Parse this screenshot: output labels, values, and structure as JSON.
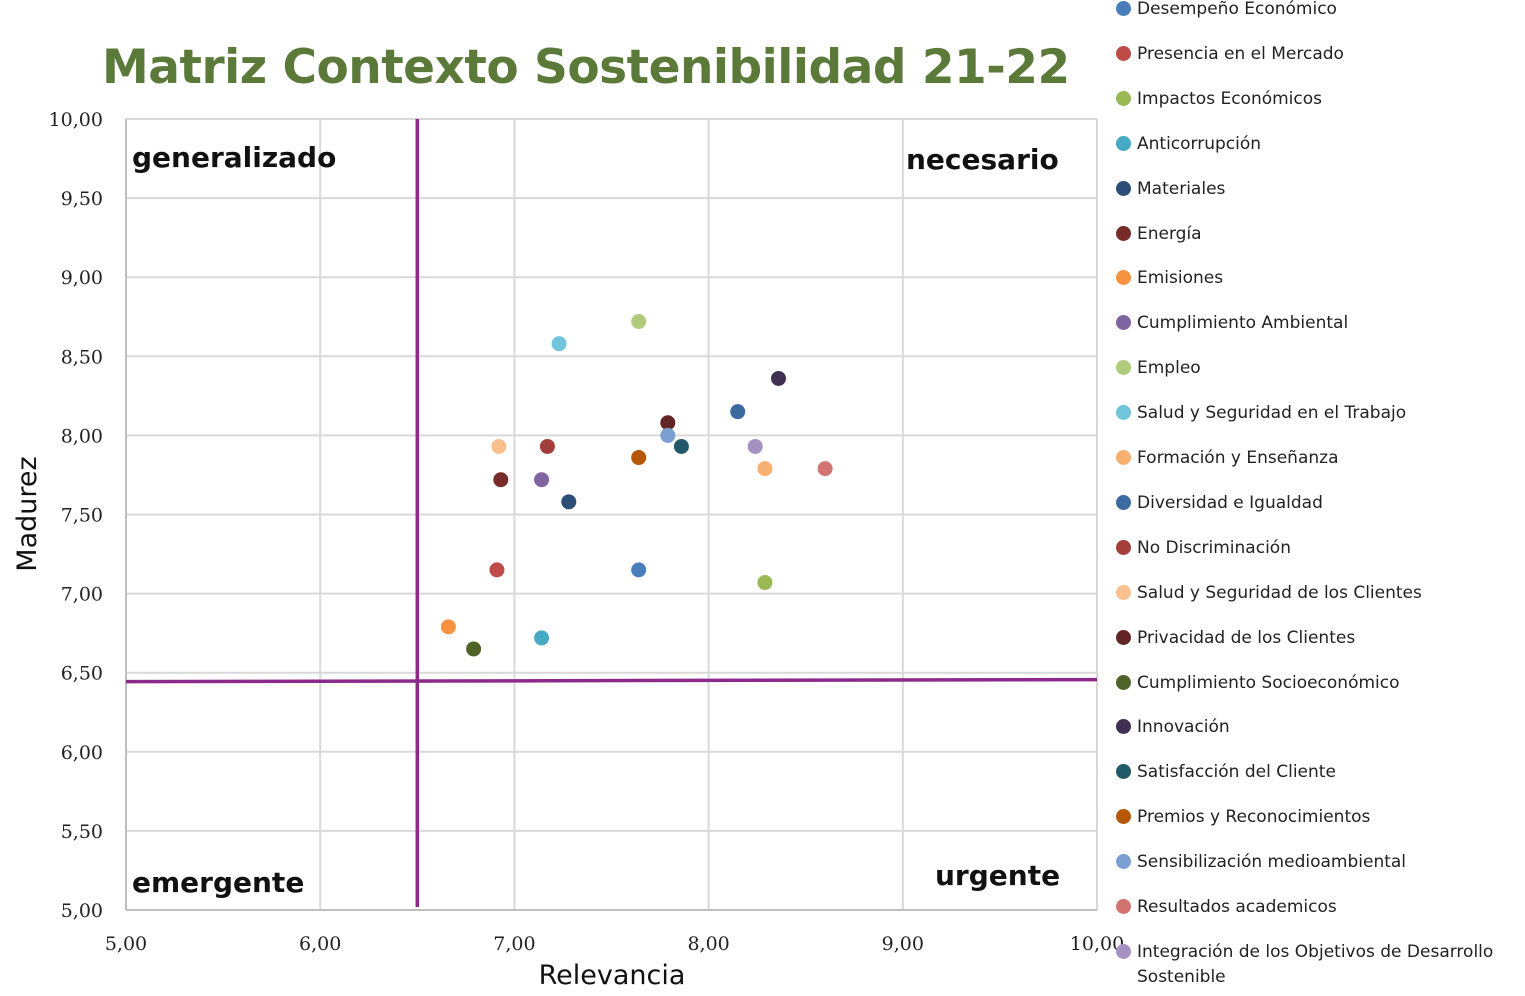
{
  "chart_data": {
    "type": "scatter",
    "title": "Matriz Contexto Sostenibilidad 21-22",
    "xlabel": "Relevancia",
    "ylabel": "Madurez",
    "xlim": [
      5,
      10
    ],
    "ylim": [
      5,
      10
    ],
    "x_ticks": [
      "5,00",
      "6,00",
      "7,00",
      "8,00",
      "9,00",
      "10,00"
    ],
    "y_ticks": [
      "5,00",
      "5,50",
      "6,00",
      "6,50",
      "7,00",
      "7,50",
      "8,00",
      "8,50",
      "9,00",
      "9,50",
      "10,00"
    ],
    "quadrant_lines": {
      "x": 6.5,
      "y": 6.45
    },
    "quadrant_labels": {
      "top_left": "generalizado",
      "top_right": "necesario",
      "bottom_left": "emergente",
      "bottom_right": "urgente"
    },
    "legend_position": "right",
    "grid": true,
    "series": [
      {
        "name": "Desempeño Económico",
        "color": "#4a7ebb",
        "x": 7.64,
        "y": 7.15
      },
      {
        "name": "Presencia en el Mercado",
        "color": "#be4b48",
        "x": 6.91,
        "y": 7.15
      },
      {
        "name": "Impactos Económicos",
        "color": "#98b954",
        "x": 8.29,
        "y": 7.07
      },
      {
        "name": "Anticorrupción",
        "color": "#46aac5",
        "x": 7.14,
        "y": 6.72
      },
      {
        "name": "Materiales",
        "color": "#2c4d75",
        "x": 7.28,
        "y": 7.58
      },
      {
        "name": "Energía",
        "color": "#772c2a",
        "x": 6.93,
        "y": 7.72
      },
      {
        "name": "Emisiones",
        "color": "#f69240",
        "x": 6.66,
        "y": 6.79
      },
      {
        "name": "Cumplimiento Ambiental",
        "color": "#8064a2",
        "x": 7.14,
        "y": 7.72
      },
      {
        "name": "Empleo",
        "color": "#afcb7c",
        "x": 7.64,
        "y": 8.72
      },
      {
        "name": "Salud y Seguridad en el Trabajo",
        "color": "#70c5da",
        "x": 7.23,
        "y": 8.58
      },
      {
        "name": "Formación y Enseñanza",
        "color": "#f7b070",
        "x": 8.29,
        "y": 7.79
      },
      {
        "name": "Diversidad e Igualdad",
        "color": "#3b6aa0",
        "x": 8.15,
        "y": 8.15
      },
      {
        "name": "No Discriminación",
        "color": "#a43e3b",
        "x": 7.17,
        "y": 7.93
      },
      {
        "name": "Salud y Seguridad de los Clientes",
        "color": "#fac090",
        "x": 6.92,
        "y": 7.93
      },
      {
        "name": "Privacidad de los Clientes",
        "color": "#632523",
        "x": 7.79,
        "y": 8.08
      },
      {
        "name": "Cumplimiento Socioeconómico",
        "color": "#4f6228",
        "x": 6.79,
        "y": 6.65
      },
      {
        "name": "Innovación",
        "color": "#403152",
        "x": 8.36,
        "y": 8.36
      },
      {
        "name": "Satisfacción del Cliente",
        "color": "#215968",
        "x": 7.86,
        "y": 7.93
      },
      {
        "name": "Premios y Reconocimientos",
        "color": "#b65708",
        "x": 7.64,
        "y": 7.86
      },
      {
        "name": "Sensibilización medioambiental",
        "color": "#7b9fd3",
        "x": 7.79,
        "y": 8.0
      },
      {
        "name": "Resultados academicos",
        "color": "#d07371",
        "x": 8.6,
        "y": 7.79
      },
      {
        "name": "Integración de los Objetivos de Desarrollo Sostenible",
        "color": "#a592c2",
        "x": 8.24,
        "y": 7.93
      }
    ]
  }
}
